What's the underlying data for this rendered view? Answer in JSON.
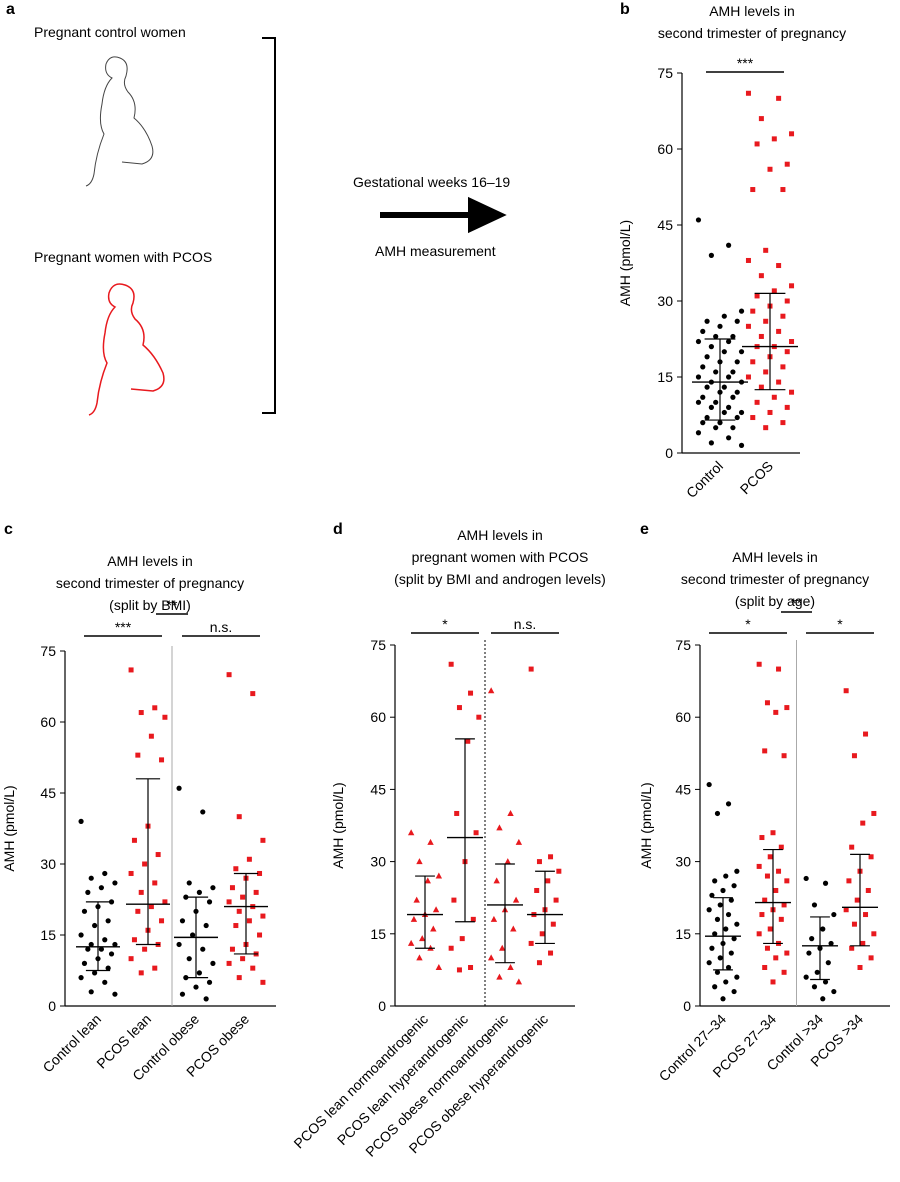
{
  "panel_a": {
    "label": "a",
    "group1": "Pregnant control women",
    "group2": "Pregnant women with PCOS",
    "arrow_top": "Gestational weeks 16–19",
    "arrow_bottom": "AMH measurement"
  },
  "chart_data": [
    {
      "type": "strip",
      "label": "b",
      "title": [
        "AMH levels in",
        "second trimester of pregnancy"
      ],
      "ylabel": "AMH (pmol/L)",
      "ylim": [
        0,
        75
      ],
      "yticks": [
        0,
        15,
        30,
        45,
        60,
        75
      ],
      "categories": [
        "Control",
        "PCOS"
      ],
      "groups": [
        {
          "color": "#000000",
          "marker": "circle",
          "median": 14,
          "q1": 6.5,
          "q3": 22.5,
          "values": [
            46,
            41,
            39,
            28,
            27,
            26,
            26,
            25,
            24,
            23,
            23,
            22,
            22,
            21,
            20,
            20,
            19,
            18,
            18,
            17,
            16,
            16,
            15,
            15,
            14,
            14,
            13,
            13,
            12,
            12,
            11,
            11,
            10,
            10,
            9,
            9,
            8,
            8,
            7,
            7,
            6,
            6,
            5,
            5,
            4,
            3,
            2,
            1.5
          ]
        },
        {
          "color": "#e8191e",
          "marker": "square",
          "median": 21,
          "q1": 12.5,
          "q3": 31.5,
          "values": [
            71,
            70,
            66,
            63,
            62,
            61,
            57,
            56,
            52,
            52,
            40,
            38,
            37,
            35,
            33,
            32,
            31,
            30,
            29,
            28,
            27,
            26,
            25,
            24,
            23,
            22,
            21,
            21,
            20,
            19,
            18,
            17,
            16,
            15,
            14,
            13,
            12,
            11,
            10,
            9,
            8,
            7,
            6,
            5
          ]
        }
      ],
      "comparisons": [
        {
          "from": 0,
          "to": 1,
          "label": "***"
        }
      ],
      "dividers": []
    },
    {
      "type": "strip",
      "label": "c",
      "title": [
        "AMH levels in",
        "second trimester of pregnancy",
        "(split by BMI)"
      ],
      "ylabel": "AMH (pmol/L)",
      "ylim": [
        0,
        75
      ],
      "yticks": [
        0,
        15,
        30,
        45,
        60,
        75
      ],
      "categories": [
        "Control lean",
        "PCOS lean",
        "Control obese",
        "PCOS obese"
      ],
      "groups": [
        {
          "color": "#000000",
          "marker": "circle",
          "median": 12.5,
          "q1": 7.5,
          "q3": 22,
          "values": [
            39,
            28,
            27,
            26,
            25,
            24,
            22,
            21,
            20,
            18,
            17,
            15,
            14,
            13,
            13,
            12,
            12,
            11,
            10,
            9,
            8,
            7,
            6,
            5,
            3,
            2.5
          ]
        },
        {
          "color": "#e8191e",
          "marker": "square",
          "median": 21.5,
          "q1": 13,
          "q3": 48,
          "values": [
            71,
            63,
            62,
            61,
            57,
            53,
            52,
            38,
            35,
            32,
            30,
            28,
            26,
            24,
            22,
            21,
            20,
            18,
            16,
            14,
            13,
            12,
            10,
            8,
            7
          ]
        },
        {
          "color": "#000000",
          "marker": "circle",
          "median": 14.5,
          "q1": 6,
          "q3": 23,
          "values": [
            46,
            41,
            26,
            25,
            24,
            23,
            22,
            20,
            18,
            17,
            15,
            13,
            12,
            10,
            9,
            7,
            6,
            5,
            4,
            2.5,
            1.5
          ]
        },
        {
          "color": "#e8191e",
          "marker": "square",
          "median": 21,
          "q1": 11,
          "q3": 28,
          "values": [
            70,
            66,
            40,
            35,
            31,
            29,
            28,
            27,
            25,
            24,
            23,
            22,
            21,
            20,
            19,
            18,
            17,
            15,
            13,
            12,
            11,
            10,
            9,
            8,
            6,
            5
          ]
        }
      ],
      "comparisons": [
        {
          "from": 0,
          "to": 1,
          "label": "***",
          "level": 0
        },
        {
          "from": 1,
          "to": 2,
          "label": "**",
          "level": 1
        },
        {
          "from": 2,
          "to": 3,
          "label": "n.s.",
          "level": 0
        }
      ],
      "dividers": [
        {
          "after": 1,
          "style": "solid"
        }
      ]
    },
    {
      "type": "strip",
      "label": "d",
      "title": [
        "AMH levels in",
        "pregnant women with PCOS",
        "(split by BMI and androgen levels)"
      ],
      "ylabel": "AMH (pmol/L)",
      "ylim": [
        0,
        75
      ],
      "yticks": [
        0,
        15,
        30,
        45,
        60,
        75
      ],
      "categories": [
        "PCOS lean normoandrogenic",
        "PCOS lean hyperandrogenic",
        "PCOS obese normoandrogenic",
        "PCOS obese hyperandrogenic"
      ],
      "groups": [
        {
          "color": "#e8191e",
          "marker": "triangle",
          "median": 19,
          "q1": 12,
          "q3": 27,
          "values": [
            36,
            34,
            30,
            27,
            26,
            22,
            20,
            19,
            18,
            16,
            14,
            13,
            12,
            10,
            8
          ]
        },
        {
          "color": "#e8191e",
          "marker": "square",
          "median": 35,
          "q1": 17.5,
          "q3": 55.5,
          "values": [
            71,
            65,
            62,
            60,
            55,
            40,
            36,
            30,
            22,
            18,
            14,
            12,
            8,
            7.5
          ]
        },
        {
          "color": "#e8191e",
          "marker": "triangle",
          "median": 21,
          "q1": 9,
          "q3": 29.5,
          "values": [
            65.5,
            40,
            37,
            34,
            30,
            26,
            22,
            20,
            18,
            16,
            12,
            10,
            8,
            6,
            5
          ]
        },
        {
          "color": "#e8191e",
          "marker": "square",
          "median": 19,
          "q1": 13,
          "q3": 28,
          "values": [
            70,
            31,
            30,
            28,
            26,
            24,
            22,
            20,
            19,
            17,
            15,
            13,
            11,
            9
          ]
        }
      ],
      "comparisons": [
        {
          "from": 0,
          "to": 1,
          "label": "*",
          "level": 0
        },
        {
          "from": 2,
          "to": 3,
          "label": "n.s.",
          "level": 0
        }
      ],
      "dividers": [
        {
          "after": 1,
          "style": "dotted"
        }
      ]
    },
    {
      "type": "strip",
      "label": "e",
      "title": [
        "AMH levels in",
        "second trimester of pregnancy",
        "(split by age)"
      ],
      "ylabel": "AMH (pmol/L)",
      "ylim": [
        0,
        75
      ],
      "yticks": [
        0,
        15,
        30,
        45,
        60,
        75
      ],
      "categories": [
        "Control 27–34",
        "PCOS 27–34",
        "Control >34",
        "PCOS >34"
      ],
      "groups": [
        {
          "color": "#000000",
          "marker": "circle",
          "median": 14.5,
          "q1": 7.5,
          "q3": 22.5,
          "values": [
            46,
            42,
            40,
            28,
            27,
            26,
            25,
            24,
            23,
            22,
            21,
            20,
            19,
            18,
            17,
            16,
            15,
            14,
            13,
            12,
            11,
            10,
            9,
            8,
            7,
            6,
            5,
            4,
            3,
            1.5
          ]
        },
        {
          "color": "#e8191e",
          "marker": "square",
          "median": 21.5,
          "q1": 13,
          "q3": 32.5,
          "values": [
            71,
            70,
            63,
            62,
            61,
            53,
            52,
            36,
            35,
            33,
            31,
            29,
            28,
            27,
            26,
            24,
            22,
            21,
            20,
            19,
            18,
            16,
            15,
            13,
            12,
            11,
            10,
            8,
            7,
            5
          ]
        },
        {
          "color": "#000000",
          "marker": "circle",
          "median": 12.5,
          "q1": 5.5,
          "q3": 18.5,
          "values": [
            26.5,
            25.5,
            21,
            19,
            16,
            14,
            13,
            12,
            11,
            9,
            7,
            6,
            5,
            4,
            3,
            1.5
          ]
        },
        {
          "color": "#e8191e",
          "marker": "square",
          "median": 20.5,
          "q1": 12.5,
          "q3": 31.5,
          "values": [
            65.5,
            56.5,
            52,
            40,
            38,
            33,
            31,
            28,
            26,
            24,
            22,
            20,
            19,
            17,
            15,
            13,
            12,
            10,
            8
          ]
        }
      ],
      "comparisons": [
        {
          "from": 0,
          "to": 1,
          "label": "*",
          "level": 0
        },
        {
          "from": 1,
          "to": 2,
          "label": "**",
          "level": 1
        },
        {
          "from": 2,
          "to": 3,
          "label": "*",
          "level": 0
        }
      ],
      "dividers": [
        {
          "after": 1,
          "style": "solid"
        }
      ]
    }
  ]
}
